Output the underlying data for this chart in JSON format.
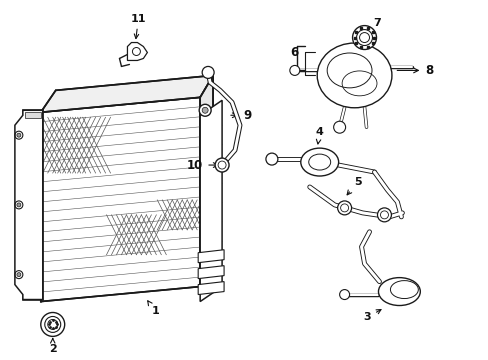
{
  "bg_color": "#ffffff",
  "line_color": "#1a1a1a",
  "text_color": "#111111",
  "fig_width": 4.89,
  "fig_height": 3.6,
  "dpi": 100
}
